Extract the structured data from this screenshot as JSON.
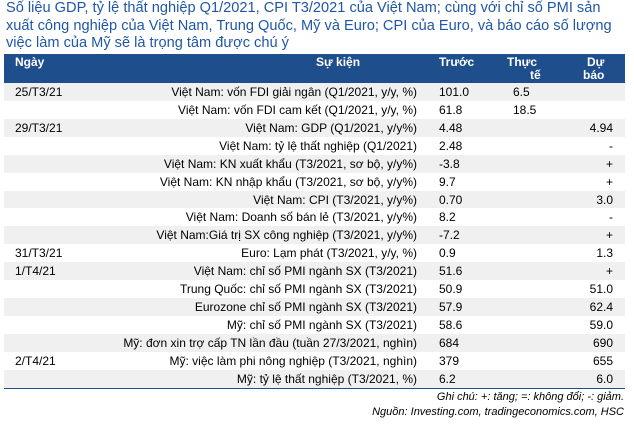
{
  "title": "Số liệu GDP, tỷ lệ thất nghiệp Q1/2021, CPI T3/2021 của Việt Nam; cùng với chỉ số PMI sản xuất công nghiệp của Việt Nam, Trung Quốc, Mỹ và Euro; CPI của Euro, và báo cáo số lượng việc làm của Mỹ sẽ là trọng tâm được chú ý",
  "headers": {
    "date": "Ngày",
    "event": "Sự kiện",
    "prev": "Trước",
    "actual_line1": "Thực",
    "actual_line2": "tế",
    "forecast_line1": "Dự",
    "forecast_line2": "báo"
  },
  "rows": [
    {
      "date": "25/T3/21",
      "event": "Việt Nam: vốn FDI giải ngân (Q1/2021, y/y, %)",
      "prev": "101.0",
      "actual": "6.5",
      "forecast": ""
    },
    {
      "date": "",
      "event": "Việt Nam: vốn FDI cam kết (Q1/2021, y/y, %)",
      "prev": "61.8",
      "actual": "18.5",
      "forecast": ""
    },
    {
      "date": "29/T3/21",
      "event": "Việt Nam: GDP (Q1/2021, y/y%)",
      "prev": "4.48",
      "actual": "",
      "forecast": "4.94"
    },
    {
      "date": "",
      "event": "Việt Nam: tỷ lệ thất nghiệp (Q1/2021)",
      "prev": "2.48",
      "actual": "",
      "forecast": "-"
    },
    {
      "date": "",
      "event": "Việt Nam: KN xuất khẩu (T3/2021, sơ bộ, y/y%)",
      "prev": "-3.8",
      "actual": "",
      "forecast": "+"
    },
    {
      "date": "",
      "event": "Việt Nam: KN nhập khẩu (T3/2021, sơ bộ, y/y%)",
      "prev": "9.7",
      "actual": "",
      "forecast": "+"
    },
    {
      "date": "",
      "event": "Việt Nam: CPI (T3/2021, y/y%)",
      "prev": "0.70",
      "actual": "",
      "forecast": "3.0"
    },
    {
      "date": "",
      "event": "Việt Nam: Doanh số bán lẻ (T3/2021, y/y%)",
      "prev": "8.2",
      "actual": "",
      "forecast": "-"
    },
    {
      "date": "",
      "event": "Việt Nam:Giá trị SX công nghiệp (T3/2021, y/y%)",
      "prev": "-7.2",
      "actual": "",
      "forecast": "+"
    },
    {
      "date": "31/T3/21",
      "event": "Euro: Lạm phát (T3/2021, y/y, %)",
      "prev": "0.9",
      "actual": "",
      "forecast": "1.3"
    },
    {
      "date": "1/T4/21",
      "event": "Việt Nam: chỉ số PMI ngành SX (T3/2021)",
      "prev": "51.6",
      "actual": "",
      "forecast": "+"
    },
    {
      "date": "",
      "event": "Trung Quốc: chỉ số PMI ngành SX (T3/2021)",
      "prev": "50.9",
      "actual": "",
      "forecast": "51.0"
    },
    {
      "date": "",
      "event": "Eurozone chỉ số PMI ngành SX (T3/2021)",
      "prev": "57.9",
      "actual": "",
      "forecast": "62.4"
    },
    {
      "date": "",
      "event": "Mỹ: chỉ số PMI ngành SX (T3/2021)",
      "prev": "58.6",
      "actual": "",
      "forecast": "59.0"
    },
    {
      "date": "",
      "event": "Mỹ: đơn xin trợ cấp TN lần đầu (tuần 27/3/2021, nghìn)",
      "prev": "684",
      "actual": "",
      "forecast": "690"
    },
    {
      "date": "2/T4/21",
      "event": "Mỹ: việc làm phi nông nghiệp (T3/2021, nghìn)",
      "prev": "379",
      "actual": "",
      "forecast": "655"
    },
    {
      "date": "",
      "event": "Mỹ: tỷ lệ thất nghiệp (T3/2021, %)",
      "prev": "6.2",
      "actual": "",
      "forecast": "6.0"
    }
  ],
  "note": "Ghi chú: +: tăng; =: không đổi; -: giảm.",
  "source": "Nguồn: Investing.com, tradingeconomics.com, HSC",
  "colors": {
    "title": "#1f57a8",
    "header_bg": "#1f4e8c",
    "alt_row": "#f0f0f0"
  }
}
